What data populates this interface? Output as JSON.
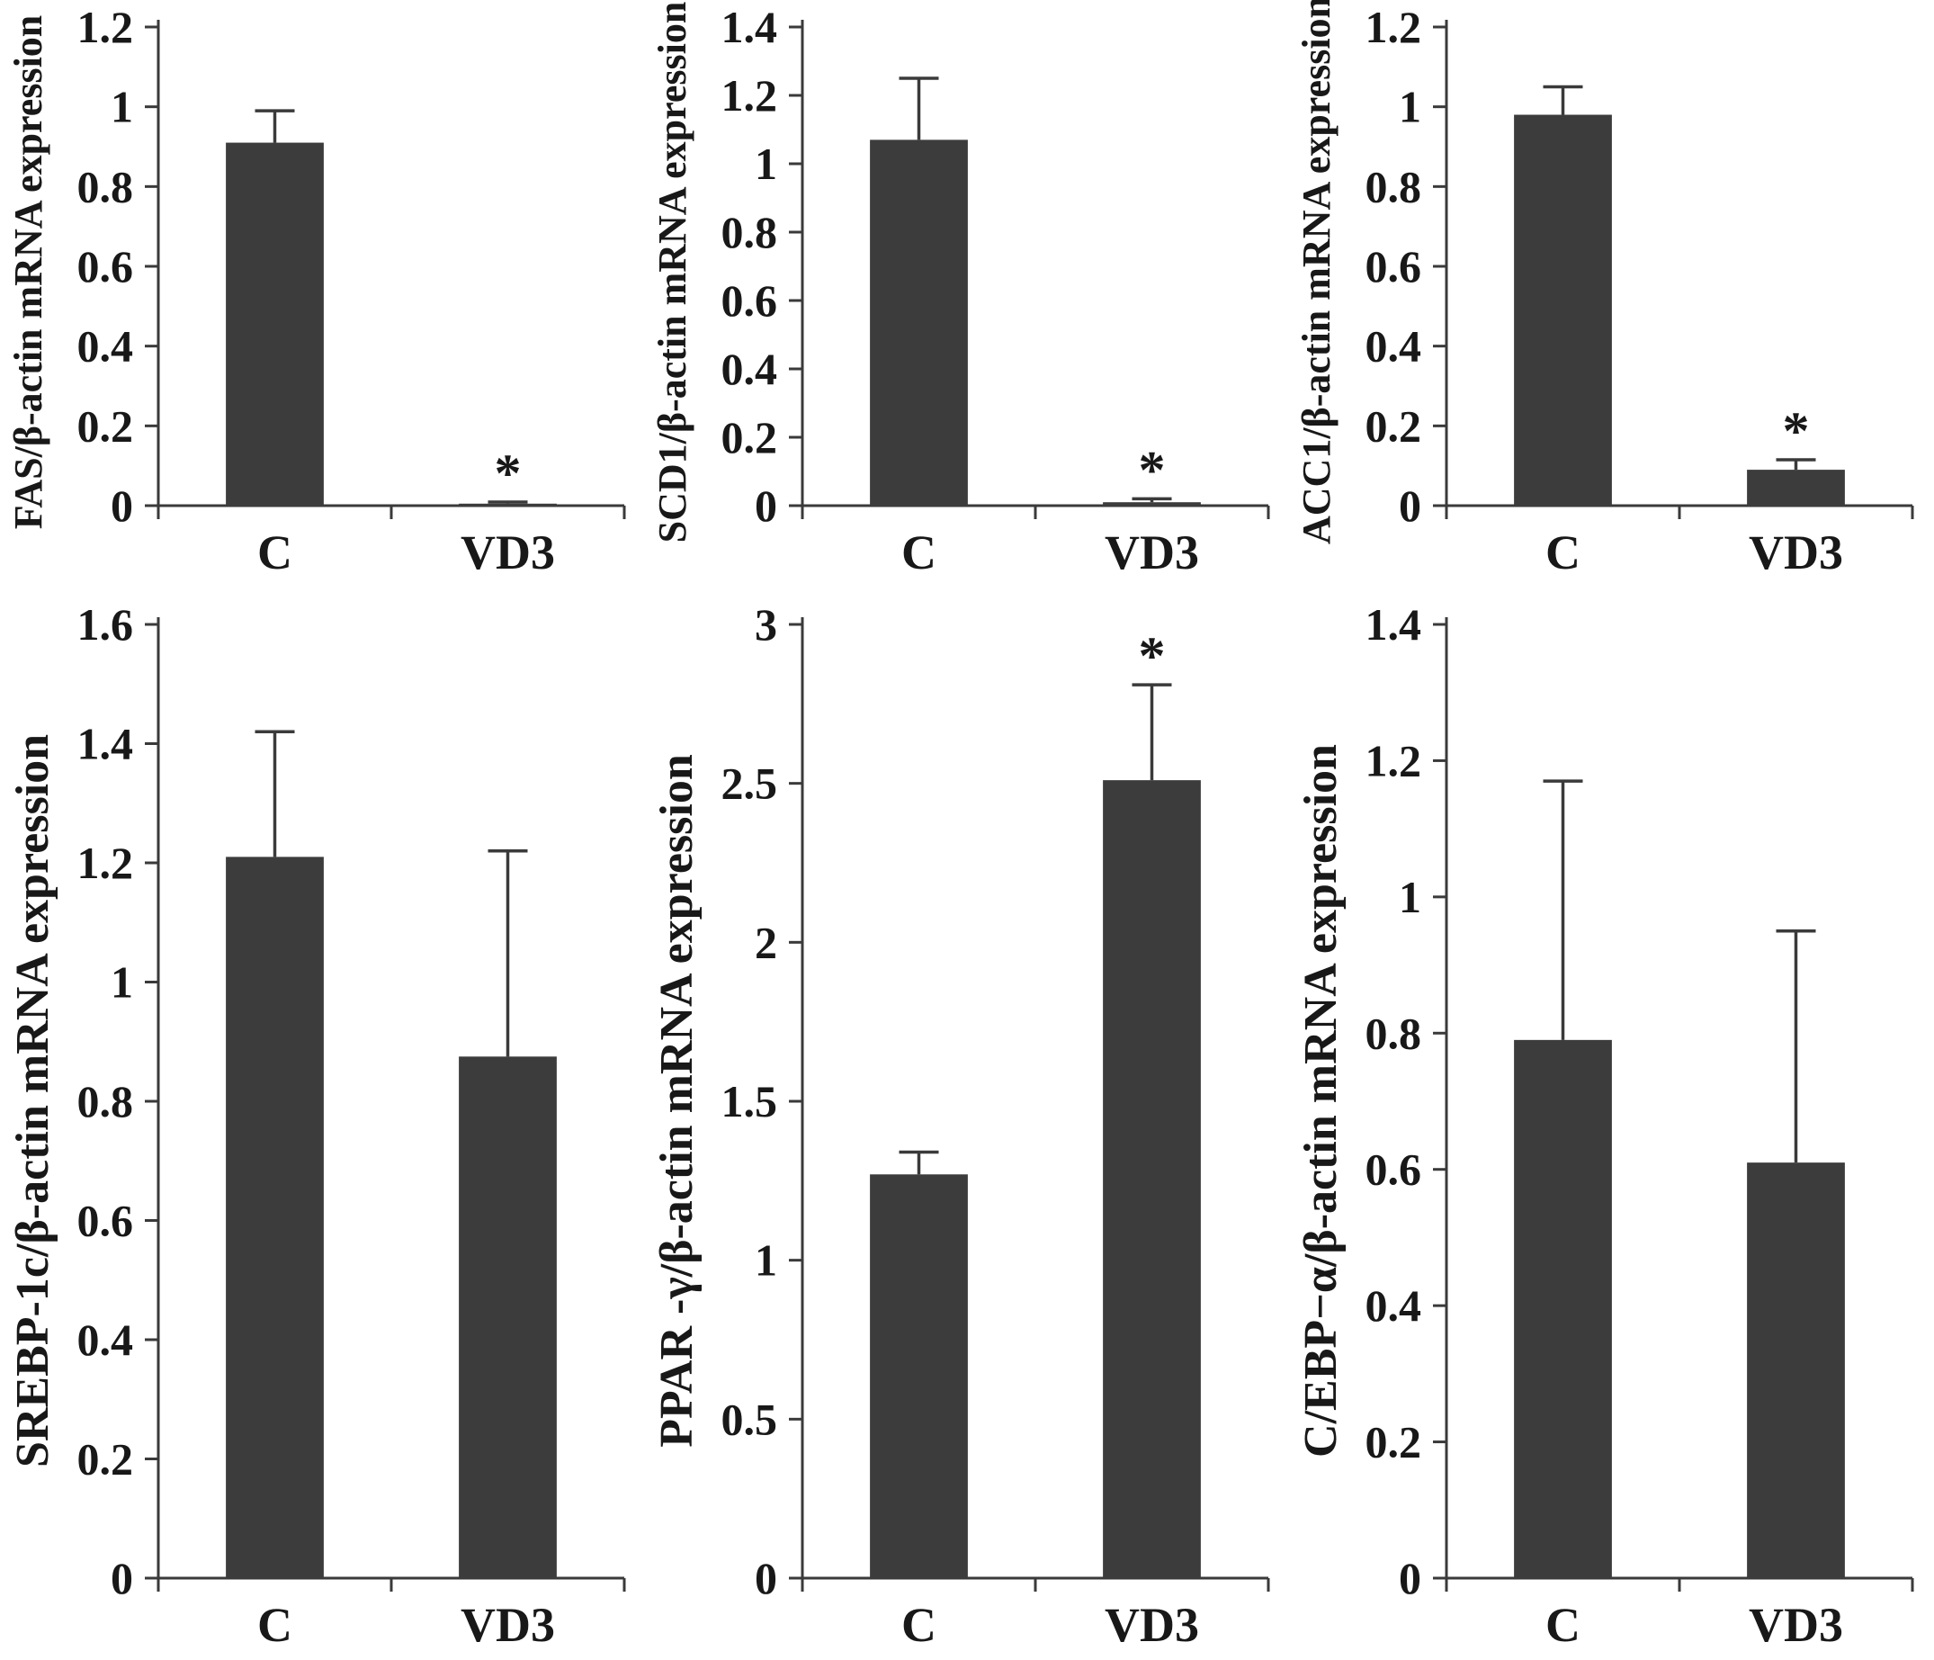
{
  "figure": {
    "background": "#ffffff",
    "bar_color": "#3c3c3c",
    "axis_color": "#3a3a3a",
    "text_color": "#181818",
    "sig_marker": "*"
  },
  "chart_data": [
    {
      "type": "bar",
      "ylabel": "FAS/β-actin mRNA expression",
      "categories": [
        "C",
        "VD3"
      ],
      "values": [
        0.91,
        0.005
      ],
      "errors": [
        0.08,
        0.004
      ],
      "significant": [
        false,
        true
      ],
      "ylim": [
        0,
        1.2
      ],
      "ytick": 0.2,
      "legend": "none",
      "grid": false
    },
    {
      "type": "bar",
      "ylabel": "SCD1/β-actin mRNA expression",
      "categories": [
        "C",
        "VD3"
      ],
      "values": [
        1.07,
        0.01
      ],
      "errors": [
        0.18,
        0.01
      ],
      "significant": [
        false,
        true
      ],
      "ylim": [
        0,
        1.4
      ],
      "ytick": 0.2,
      "legend": "none",
      "grid": false
    },
    {
      "type": "bar",
      "ylabel": "ACC1/β-actin mRNA expression",
      "categories": [
        "C",
        "VD3"
      ],
      "values": [
        0.98,
        0.09
      ],
      "errors": [
        0.07,
        0.025
      ],
      "significant": [
        false,
        true
      ],
      "ylim": [
        0,
        1.2
      ],
      "ytick": 0.2,
      "legend": "none",
      "grid": false
    },
    {
      "type": "bar",
      "ylabel": "SREBP-1c/β-actin mRNA expression",
      "categories": [
        "C",
        "VD3"
      ],
      "values": [
        1.21,
        0.875
      ],
      "errors": [
        0.21,
        0.345
      ],
      "significant": [
        false,
        false
      ],
      "ylim": [
        0,
        1.6
      ],
      "ytick": 0.2,
      "legend": "none",
      "grid": false
    },
    {
      "type": "bar",
      "ylabel": "PPAR -γ/β-actin mRNA expression",
      "categories": [
        "C",
        "VD3"
      ],
      "values": [
        1.27,
        2.51
      ],
      "errors": [
        0.07,
        0.3
      ],
      "significant": [
        false,
        true
      ],
      "ylim": [
        0,
        3
      ],
      "ytick": 0.5,
      "legend": "none",
      "grid": false
    },
    {
      "type": "bar",
      "ylabel": "C/EBP−α/β-actin mRNA expression",
      "categories": [
        "C",
        "VD3"
      ],
      "values": [
        0.79,
        0.61
      ],
      "errors": [
        0.38,
        0.34
      ],
      "significant": [
        false,
        false
      ],
      "ylim": [
        0,
        1.4
      ],
      "ytick": 0.2,
      "legend": "none",
      "grid": false
    }
  ]
}
